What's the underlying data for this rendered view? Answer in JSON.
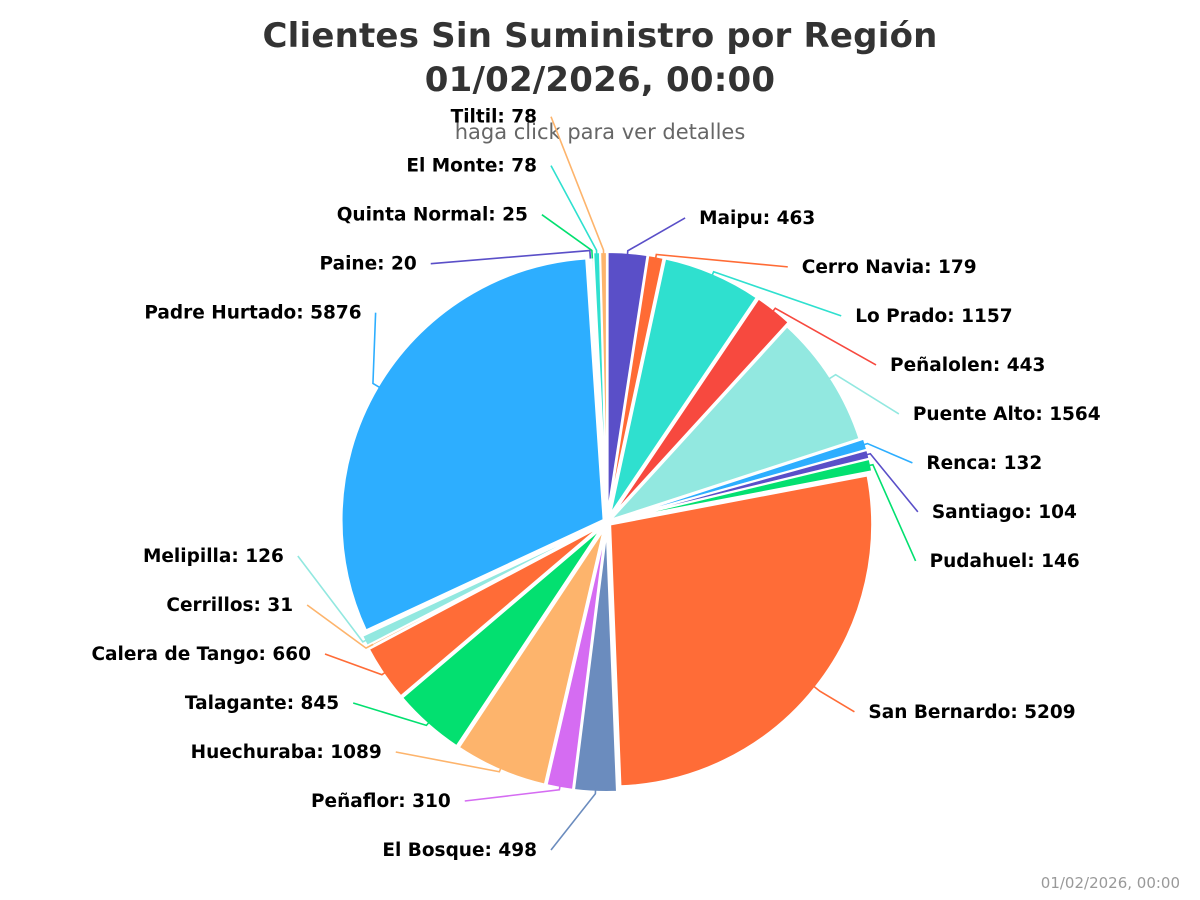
{
  "chart_data": {
    "type": "pie",
    "title": [
      "Clientes Sin Suministro por Región",
      "01/02/2026, 00:00"
    ],
    "subtitle": "haga click para ver detalles",
    "data_label_format": "{name}: {value}",
    "slices": [
      {
        "name": "Maipu",
        "value": 463,
        "color": "#5a4fc8"
      },
      {
        "name": "Cerro Navia",
        "value": 179,
        "color": "#ff6b35"
      },
      {
        "name": "Lo Prado",
        "value": 1157,
        "color": "#2fe0cf"
      },
      {
        "name": "Peñalolen",
        "value": 443,
        "color": "#f7493f"
      },
      {
        "name": "Puente Alto",
        "value": 1564,
        "color": "#92e8e0"
      },
      {
        "name": "Renca",
        "value": 132,
        "color": "#2daeff"
      },
      {
        "name": "Santiago",
        "value": 104,
        "color": "#5a4fc8"
      },
      {
        "name": "Pudahuel",
        "value": 146,
        "color": "#03e070"
      },
      {
        "name": "San Bernardo",
        "value": 5209,
        "color": "#ff6c37"
      },
      {
        "name": "El Bosque",
        "value": 498,
        "color": "#6b8cbe"
      },
      {
        "name": "Peñaflor",
        "value": 310,
        "color": "#d56cf2"
      },
      {
        "name": "Huechuraba",
        "value": 1089,
        "color": "#fdb46c"
      },
      {
        "name": "Talagante",
        "value": 845,
        "color": "#03e070"
      },
      {
        "name": "Calera de Tango",
        "value": 660,
        "color": "#ff6c37"
      },
      {
        "name": "Cerrillos",
        "value": 31,
        "color": "#fdb46c"
      },
      {
        "name": "Melipilla",
        "value": 126,
        "color": "#92e8e0"
      },
      {
        "name": "Padre Hurtado",
        "value": 5876,
        "color": "#2daeff"
      },
      {
        "name": "Paine",
        "value": 20,
        "color": "#5a4fc8"
      },
      {
        "name": "Quinta Normal",
        "value": 25,
        "color": "#03e070"
      },
      {
        "name": "El Monte",
        "value": 78,
        "color": "#2fe0cf"
      },
      {
        "name": "Tiltil",
        "value": 78,
        "color": "#fdb46c"
      }
    ]
  },
  "footer": {
    "timestamp": "01/02/2026, 00:00"
  }
}
